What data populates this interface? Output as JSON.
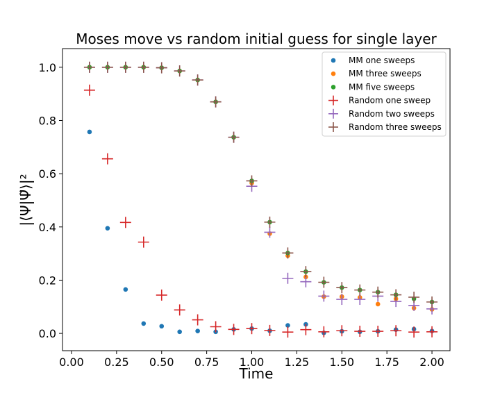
{
  "chart_data": {
    "type": "scatter",
    "title": "Moses move vs random initial guess for single layer",
    "xlabel": "Time",
    "ylabel": "|⟨Ψ|Ψ̃⟩|²",
    "xlim": [
      -0.05,
      2.1
    ],
    "ylim": [
      -0.065,
      1.07
    ],
    "xticks": [
      "0.00",
      "0.25",
      "0.50",
      "0.75",
      "1.00",
      "1.25",
      "1.50",
      "1.75",
      "2.00"
    ],
    "yticks": [
      "0.0",
      "0.2",
      "0.4",
      "0.6",
      "0.8",
      "1.0"
    ],
    "grid": false,
    "legend_position": "top-right",
    "x": [
      0.1,
      0.2,
      0.3,
      0.4,
      0.5,
      0.6,
      0.7,
      0.8,
      0.9,
      1.0,
      1.1,
      1.2,
      1.3,
      1.4,
      1.5,
      1.6,
      1.7,
      1.8,
      1.9,
      2.0
    ],
    "series": [
      {
        "name": "MM one sweeps",
        "marker": "dot",
        "color": "#1f77b4",
        "values": [
          0.757,
          0.395,
          0.165,
          0.037,
          0.027,
          0.006,
          0.009,
          0.006,
          0.015,
          0.018,
          0.01,
          0.03,
          0.034,
          0.002,
          0.008,
          0.006,
          0.008,
          0.014,
          0.016,
          0.009
        ]
      },
      {
        "name": "MM three sweeps",
        "marker": "dot",
        "color": "#ff7f0e",
        "values": [
          1.0,
          1.0,
          1.0,
          1.0,
          0.998,
          0.986,
          0.952,
          0.87,
          0.737,
          0.565,
          0.375,
          0.292,
          0.212,
          0.138,
          0.138,
          0.135,
          0.11,
          0.13,
          0.095,
          0.09
        ]
      },
      {
        "name": "MM five sweeps",
        "marker": "dot",
        "color": "#2ca02c",
        "values": [
          1.0,
          1.0,
          1.0,
          1.0,
          0.998,
          0.986,
          0.952,
          0.87,
          0.737,
          0.573,
          0.418,
          0.302,
          0.232,
          0.192,
          0.172,
          0.163,
          0.155,
          0.145,
          0.13,
          0.118
        ]
      },
      {
        "name": "Random one sweep",
        "marker": "plus",
        "color": "#d62728",
        "values": [
          0.914,
          0.656,
          0.417,
          0.343,
          0.144,
          0.088,
          0.051,
          0.025,
          0.015,
          0.018,
          0.011,
          0.005,
          0.014,
          0.006,
          0.01,
          0.008,
          0.008,
          0.01,
          0.005,
          0.006
        ]
      },
      {
        "name": "Random two sweeps",
        "marker": "plus",
        "color": "#9467bd",
        "values": [
          1.0,
          1.0,
          1.0,
          1.0,
          0.998,
          0.986,
          0.952,
          0.87,
          0.737,
          0.553,
          0.38,
          0.207,
          0.194,
          0.14,
          0.128,
          0.128,
          0.14,
          0.12,
          0.105,
          0.092
        ]
      },
      {
        "name": "Random three sweeps",
        "marker": "plus",
        "color": "#8c564b",
        "values": [
          1.0,
          1.0,
          1.0,
          1.0,
          0.998,
          0.986,
          0.952,
          0.87,
          0.737,
          0.573,
          0.418,
          0.302,
          0.232,
          0.192,
          0.172,
          0.163,
          0.155,
          0.145,
          0.136,
          0.118
        ]
      }
    ]
  }
}
